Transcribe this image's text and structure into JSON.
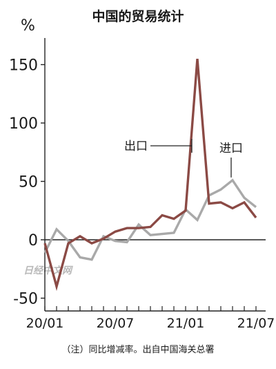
{
  "chart_data": {
    "type": "line",
    "title": "中国的贸易统计",
    "unit": "%",
    "note": "（注）同比增减率。出自中国海关总署",
    "watermark": "日经中文网",
    "yticks": [
      150,
      100,
      50,
      0,
      -50
    ],
    "ylim": [
      -60,
      170
    ],
    "xticks": [
      "20/01",
      "20/07",
      "21/01",
      "21/07"
    ],
    "x": [
      "20/01",
      "20/02",
      "20/03",
      "20/04",
      "20/05",
      "20/06",
      "20/07",
      "20/08",
      "20/09",
      "20/10",
      "20/11",
      "20/12",
      "21/01",
      "21/02",
      "21/03",
      "21/04",
      "21/05",
      "21/06",
      "21/07"
    ],
    "grid": false,
    "series": [
      {
        "name": "出口",
        "color": "#8b4a45",
        "values": [
          -3,
          -40,
          -3,
          3,
          -3,
          1,
          7,
          10,
          10,
          11,
          21,
          18,
          25,
          155,
          31,
          32,
          27,
          32,
          19
        ]
      },
      {
        "name": "进口",
        "color": "#a9a9a9",
        "values": [
          -11,
          9,
          -1,
          -15,
          -17,
          3,
          -1,
          -2,
          13,
          4,
          5,
          6,
          26,
          17,
          38,
          43,
          51,
          36,
          28
        ]
      }
    ]
  }
}
